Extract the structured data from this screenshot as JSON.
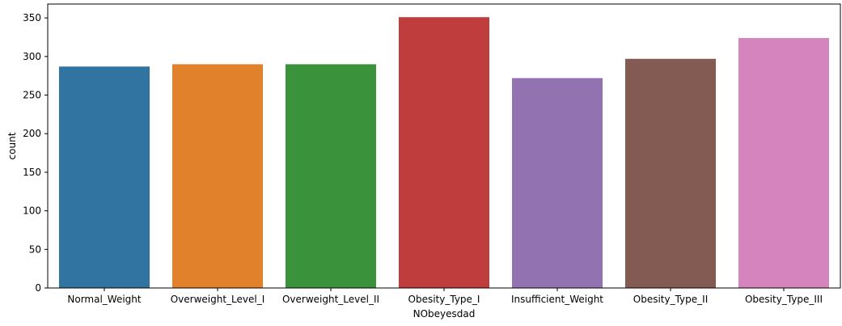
{
  "chart_data": {
    "type": "bar",
    "categories": [
      "Normal_Weight",
      "Overweight_Level_I",
      "Overweight_Level_II",
      "Obesity_Type_I",
      "Insufficient_Weight",
      "Obesity_Type_II",
      "Obesity_Type_III"
    ],
    "values": [
      287,
      290,
      290,
      351,
      272,
      297,
      324
    ],
    "colors": [
      "#3274a1",
      "#e1812c",
      "#3a923a",
      "#c03d3e",
      "#9372b2",
      "#845b53",
      "#d684bd"
    ],
    "title": "",
    "xlabel": "NObeyesdad",
    "ylabel": "count",
    "ylim": [
      0,
      368
    ],
    "yticks": [
      0,
      50,
      100,
      150,
      200,
      250,
      300,
      350
    ],
    "grid": false,
    "legend": "none"
  }
}
